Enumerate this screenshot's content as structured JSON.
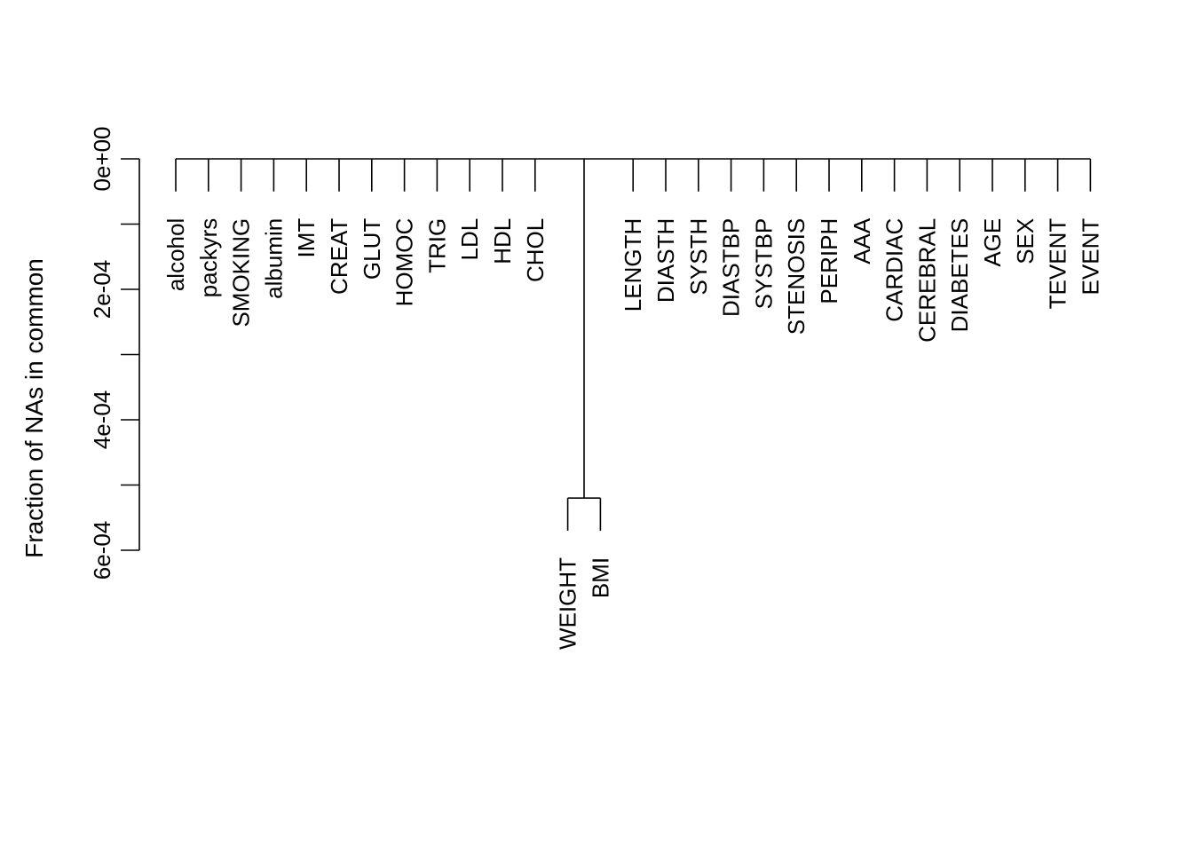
{
  "chart_data": {
    "type": "dendrogram",
    "ylabel": "Fraction of NAs in common",
    "ylim": [
      0,
      0.0006
    ],
    "y_inverted": true,
    "y_ticks": [
      0,
      0.0001,
      0.0002,
      0.0003,
      0.0004,
      0.0005,
      0.0006
    ],
    "y_tick_labels": [
      "0e+00",
      "2e-04",
      "4e-04",
      "6e-04"
    ],
    "y_tick_label_values": [
      0,
      0.0002,
      0.0004,
      0.0006
    ],
    "leaf_order": [
      "alcohol",
      "packyrs",
      "SMOKING",
      "albumin",
      "IMT",
      "CREAT",
      "GLUT",
      "HOMOC",
      "TRIG",
      "LDL",
      "HDL",
      "CHOL",
      "WEIGHT",
      "BMI",
      "LENGTH",
      "DIASTH",
      "SYSTH",
      "DIASTBP",
      "SYSTBP",
      "STENOSIS",
      "PERIPH",
      "AAA",
      "CARDIAC",
      "CEREBRAL",
      "DIABETES",
      "AGE",
      "SEX",
      "TEVENT",
      "EVENT"
    ],
    "merges": [
      {
        "members": [
          "WEIGHT",
          "BMI"
        ],
        "height": 0.00052
      },
      {
        "members": [
          "alcohol",
          "packyrs",
          "SMOKING",
          "albumin",
          "IMT",
          "CREAT",
          "GLUT",
          "HOMOC",
          "TRIG",
          "LDL",
          "HDL",
          "CHOL",
          "WEIGHT+BMI",
          "LENGTH",
          "DIASTH",
          "SYSTH",
          "DIASTBP",
          "SYSTBP",
          "STENOSIS",
          "PERIPH",
          "AAA",
          "CARDIAC",
          "CEREBRAL",
          "DIABETES",
          "AGE",
          "SEX",
          "TEVENT",
          "EVENT"
        ],
        "height": 0
      }
    ],
    "leaf_hang": 5e-05
  }
}
